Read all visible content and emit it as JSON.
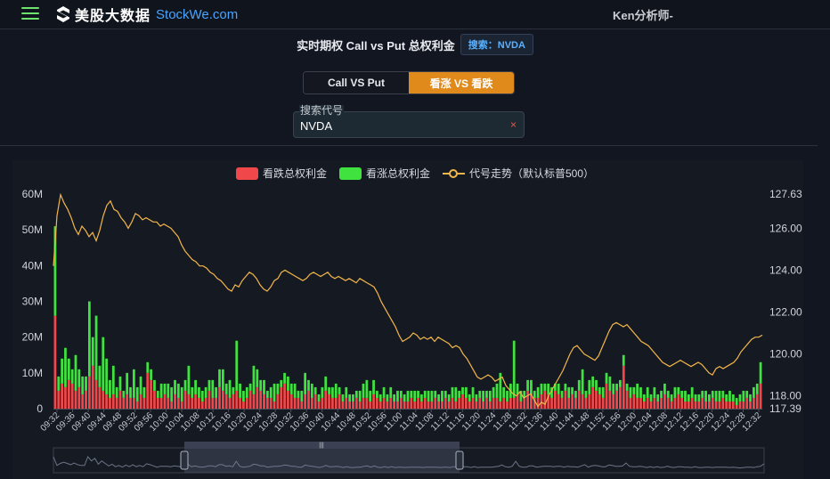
{
  "header": {
    "logo_text": "美股大数据",
    "logo_domain": "StockWe.com",
    "user": "Ken分析师-"
  },
  "page": {
    "title": "实时期权 Call vs Put 总权利金",
    "search_badge": "搜索：NVDA"
  },
  "toggle": {
    "options": [
      "Call VS Put",
      "看涨 VS 看跌"
    ],
    "active": 1
  },
  "search": {
    "label": "搜索代号",
    "value": "NVDA",
    "clear": "×"
  },
  "colors": {
    "put": "#f0484a",
    "call": "#3fe23f",
    "price": "#f2b64a",
    "accent": "#e08a1b"
  },
  "chart_data": {
    "type": "bar",
    "legend": [
      "看跌总权利金",
      "看涨总权利金",
      "代号走势（默认标普500）"
    ],
    "y_left_ticks": [
      "60M",
      "50M",
      "40M",
      "30M",
      "20M",
      "10M",
      "0"
    ],
    "y_right_ticks": [
      "127.63",
      "126.00",
      "124.00",
      "122.00",
      "120.00",
      "118.00",
      "117.39"
    ],
    "ylim_left": [
      0,
      60
    ],
    "ylim_right": [
      117.39,
      127.63
    ],
    "x_tick_labels": [
      "09:32",
      "09:36",
      "09:40",
      "09:44",
      "09:48",
      "09:52",
      "09:56",
      "10:00",
      "10:04",
      "10:08",
      "10:12",
      "10:16",
      "10:20",
      "10:24",
      "10:28",
      "10:32",
      "10:36",
      "10:40",
      "10:44",
      "10:48",
      "10:52",
      "10:56",
      "11:00",
      "11:04",
      "11:08",
      "11:12",
      "11:16",
      "11:20",
      "11:24",
      "11:28",
      "11:32",
      "11:36",
      "11:40",
      "11:44",
      "11:48",
      "11:52",
      "11:56",
      "12:00",
      "12:04",
      "12:08",
      "12:12",
      "12:16",
      "12:20",
      "12:24",
      "12:28",
      "12:32"
    ],
    "put_values": [
      26,
      5,
      7,
      6,
      8,
      7,
      5,
      6,
      4,
      5,
      9,
      12,
      8,
      6,
      5,
      4,
      3,
      4,
      3,
      5,
      3,
      4,
      3,
      3,
      2,
      4,
      3,
      10,
      8,
      5,
      3,
      3,
      4,
      3,
      2,
      4,
      3,
      2,
      5,
      4,
      3,
      4,
      3,
      2,
      3,
      5,
      3,
      3,
      6,
      5,
      4,
      3,
      4,
      5,
      3,
      2,
      3,
      5,
      4,
      6,
      5,
      4,
      3,
      3,
      2,
      4,
      6,
      7,
      5,
      4,
      3,
      3,
      2,
      4,
      5,
      3,
      4,
      2,
      3,
      5,
      4,
      3,
      3,
      4,
      2,
      3,
      2,
      2,
      3,
      2,
      3,
      3,
      2,
      4,
      3,
      2,
      3,
      2,
      3,
      2,
      2,
      3,
      2,
      2,
      3,
      2,
      3,
      2,
      3,
      2,
      2,
      3,
      2,
      2,
      3,
      2,
      3,
      2,
      3,
      4,
      3,
      2,
      3,
      2,
      3,
      2,
      3,
      2,
      3,
      3,
      2,
      3,
      2,
      3,
      3,
      4,
      2,
      3,
      5,
      4,
      3,
      3,
      4,
      5,
      4,
      3,
      5,
      4,
      3,
      5,
      3,
      4,
      3,
      5,
      4,
      3,
      4,
      6,
      5,
      4,
      3,
      7,
      5,
      4,
      5,
      6,
      12,
      5,
      3,
      4,
      3,
      3,
      2,
      3,
      2,
      3,
      2,
      3,
      4,
      3,
      2,
      3,
      4,
      3,
      2,
      2,
      3,
      2,
      2,
      3,
      2,
      2,
      3,
      2,
      2,
      3,
      2,
      2,
      2,
      1,
      2,
      2,
      3,
      2,
      3,
      4,
      7
    ],
    "call_values": [
      25,
      4,
      7,
      11,
      6,
      4,
      10,
      5,
      5,
      4,
      21,
      8,
      18,
      6,
      15,
      10,
      5,
      8,
      3,
      4,
      2,
      6,
      3,
      8,
      4,
      5,
      3,
      3,
      3,
      3,
      2,
      4,
      3,
      4,
      4,
      4,
      4,
      4,
      3,
      8,
      3,
      4,
      3,
      3,
      3,
      3,
      5,
      3,
      5,
      6,
      3,
      5,
      2,
      14,
      4,
      3,
      3,
      2,
      8,
      5,
      3,
      4,
      2,
      3,
      5,
      3,
      2,
      3,
      4,
      3,
      4,
      2,
      3,
      6,
      3,
      4,
      2,
      2,
      3,
      4,
      2,
      3,
      4,
      2,
      2,
      3,
      2,
      2,
      2,
      3,
      4,
      5,
      3,
      4,
      2,
      2,
      3,
      2,
      3,
      2,
      3,
      2,
      2,
      3,
      2,
      3,
      2,
      2,
      2,
      3,
      3,
      2,
      2,
      3,
      2,
      2,
      3,
      4,
      2,
      2,
      3,
      2,
      3,
      2,
      2,
      3,
      2,
      3,
      3,
      4,
      8,
      3,
      3,
      4,
      16,
      3,
      3,
      2,
      3,
      4,
      2,
      3,
      3,
      2,
      3,
      3,
      2,
      3,
      2,
      2,
      3,
      2,
      2,
      3,
      7,
      2,
      4,
      3,
      3,
      2,
      3,
      3,
      4,
      3,
      2,
      2,
      3,
      2,
      3,
      2,
      4,
      3,
      2,
      3,
      2,
      3,
      2,
      2,
      3,
      2,
      2,
      3,
      2,
      2,
      3,
      2,
      3,
      2,
      2,
      2,
      3,
      2,
      2,
      3,
      3,
      2,
      2,
      3,
      2,
      2,
      2,
      3,
      2,
      2,
      3,
      3,
      6
    ],
    "price_line": [
      124.2,
      126.6,
      127.6,
      127.2,
      126.9,
      126.5,
      126.0,
      125.7,
      126.1,
      125.9,
      125.6,
      125.8,
      125.4,
      125.9,
      126.6,
      127.1,
      127.3,
      126.9,
      126.8,
      126.5,
      126.3,
      126.0,
      126.3,
      126.7,
      126.6,
      126.4,
      126.5,
      126.4,
      126.3,
      126.3,
      126.1,
      126.2,
      126.1,
      126.0,
      125.8,
      125.6,
      125.2,
      124.9,
      124.7,
      124.5,
      124.4,
      124.2,
      124.2,
      124.1,
      123.9,
      123.8,
      123.6,
      123.5,
      123.3,
      123.1,
      123.0,
      123.3,
      123.2,
      123.5,
      123.7,
      123.9,
      123.8,
      123.6,
      123.3,
      123.1,
      123.0,
      123.2,
      123.5,
      123.6,
      123.9,
      124.0,
      123.9,
      123.8,
      123.7,
      123.6,
      123.5,
      123.6,
      123.8,
      123.9,
      123.8,
      123.7,
      123.8,
      123.9,
      123.7,
      123.6,
      123.7,
      123.6,
      123.5,
      123.6,
      123.5,
      123.4,
      123.6,
      123.5,
      123.4,
      123.3,
      123.2,
      122.9,
      122.5,
      122.2,
      121.9,
      121.6,
      121.3,
      120.9,
      120.6,
      120.7,
      120.8,
      121.0,
      120.9,
      120.7,
      120.8,
      120.7,
      120.8,
      120.6,
      120.8,
      120.7,
      120.6,
      120.5,
      120.3,
      120.4,
      120.3,
      120.0,
      119.8,
      119.5,
      119.2,
      118.9,
      118.8,
      118.9,
      119.0,
      118.9,
      118.7,
      118.8,
      118.9,
      118.5,
      118.3,
      118.1,
      118.0,
      118.2,
      117.9,
      118.0,
      118.1,
      117.8,
      117.5,
      117.7,
      117.6,
      118.0,
      118.3,
      118.6,
      118.9,
      119.2,
      119.6,
      120.0,
      120.3,
      120.4,
      120.2,
      120.0,
      119.9,
      119.8,
      119.7,
      119.9,
      120.3,
      120.7,
      121.1,
      121.4,
      121.5,
      121.4,
      121.3,
      121.4,
      121.2,
      121.0,
      120.8,
      120.6,
      120.5,
      120.4,
      120.2,
      120.0,
      119.8,
      119.6,
      119.5,
      119.4,
      119.5,
      119.6,
      119.7,
      119.6,
      119.5,
      119.4,
      119.5,
      119.6,
      119.5,
      119.3,
      119.1,
      119.0,
      119.3,
      119.4,
      119.3,
      119.4,
      119.5,
      119.6,
      119.8,
      120.1,
      120.3,
      120.5,
      120.7,
      120.8,
      120.8,
      120.9
    ]
  }
}
